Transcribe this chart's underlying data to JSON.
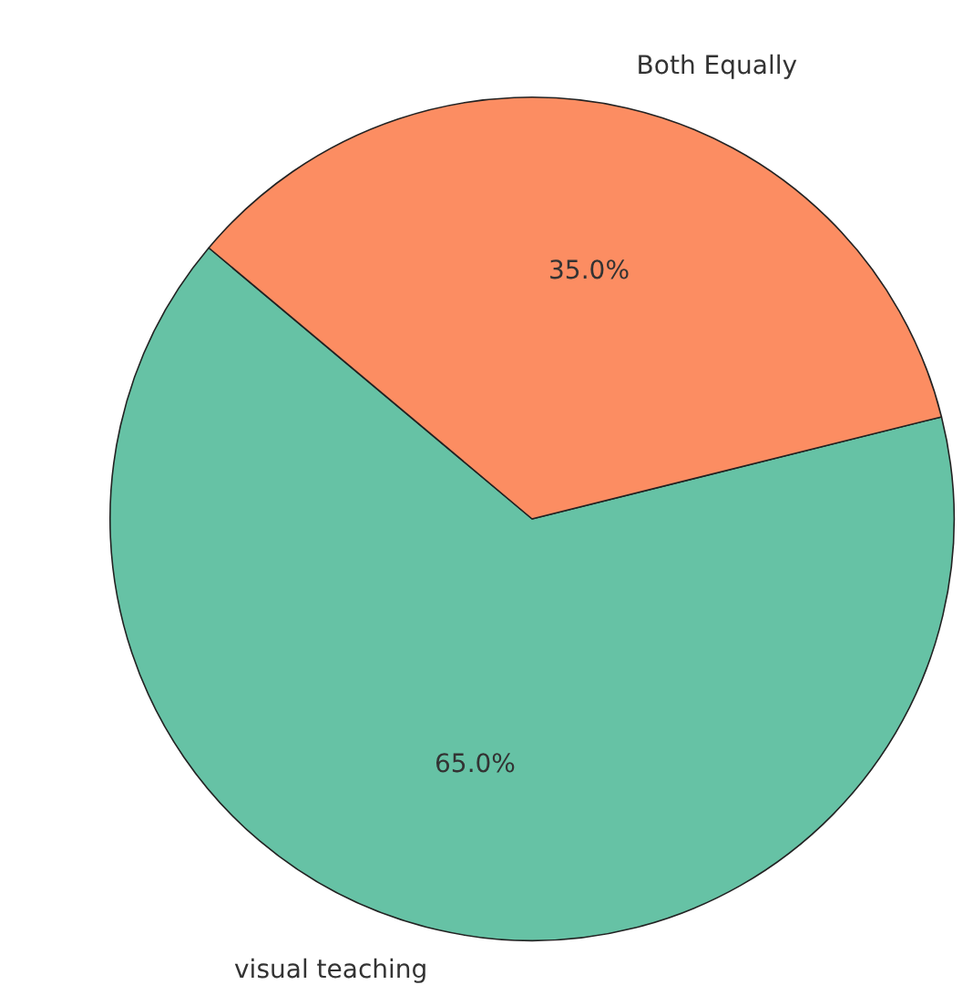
{
  "chart_data": {
    "type": "pie",
    "categories": [
      "visual teaching",
      "Both Equally"
    ],
    "values": [
      65,
      35
    ],
    "colors": [
      "#66c2a5",
      "#fc8d62"
    ],
    "value_labels": [
      "65.0%",
      "35.0%"
    ],
    "legend": false
  }
}
